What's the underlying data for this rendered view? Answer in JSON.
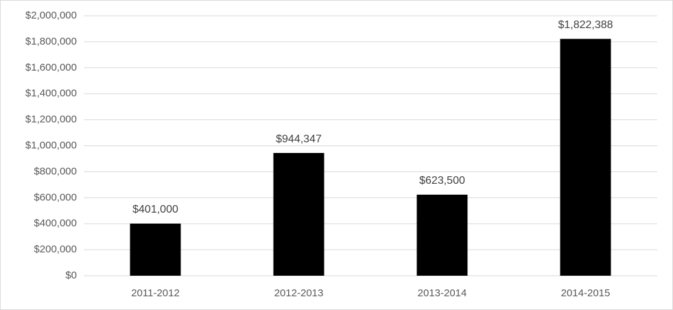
{
  "chart_data": {
    "type": "bar",
    "categories": [
      "2011-2012",
      "2012-2013",
      "2013-2014",
      "2014-2015"
    ],
    "values": [
      401000,
      944347,
      623500,
      1822388
    ],
    "value_labels": [
      "$401,000",
      "$944,347",
      "$623,500",
      "$1,822,388"
    ],
    "color": "#000000",
    "ylim": [
      0,
      2000000
    ],
    "yticks": [
      {
        "value": 0,
        "label": "$0"
      },
      {
        "value": 200000,
        "label": "$200,000"
      },
      {
        "value": 400000,
        "label": "$400,000"
      },
      {
        "value": 600000,
        "label": "$600,000"
      },
      {
        "value": 800000,
        "label": "$800,000"
      },
      {
        "value": 1000000,
        "label": "$1,000,000"
      },
      {
        "value": 1200000,
        "label": "$1,200,000"
      },
      {
        "value": 1400000,
        "label": "$1,400,000"
      },
      {
        "value": 1600000,
        "label": "$1,600,000"
      },
      {
        "value": 1800000,
        "label": "$1,800,000"
      },
      {
        "value": 2000000,
        "label": "$2,000,000"
      }
    ],
    "grid": true
  }
}
